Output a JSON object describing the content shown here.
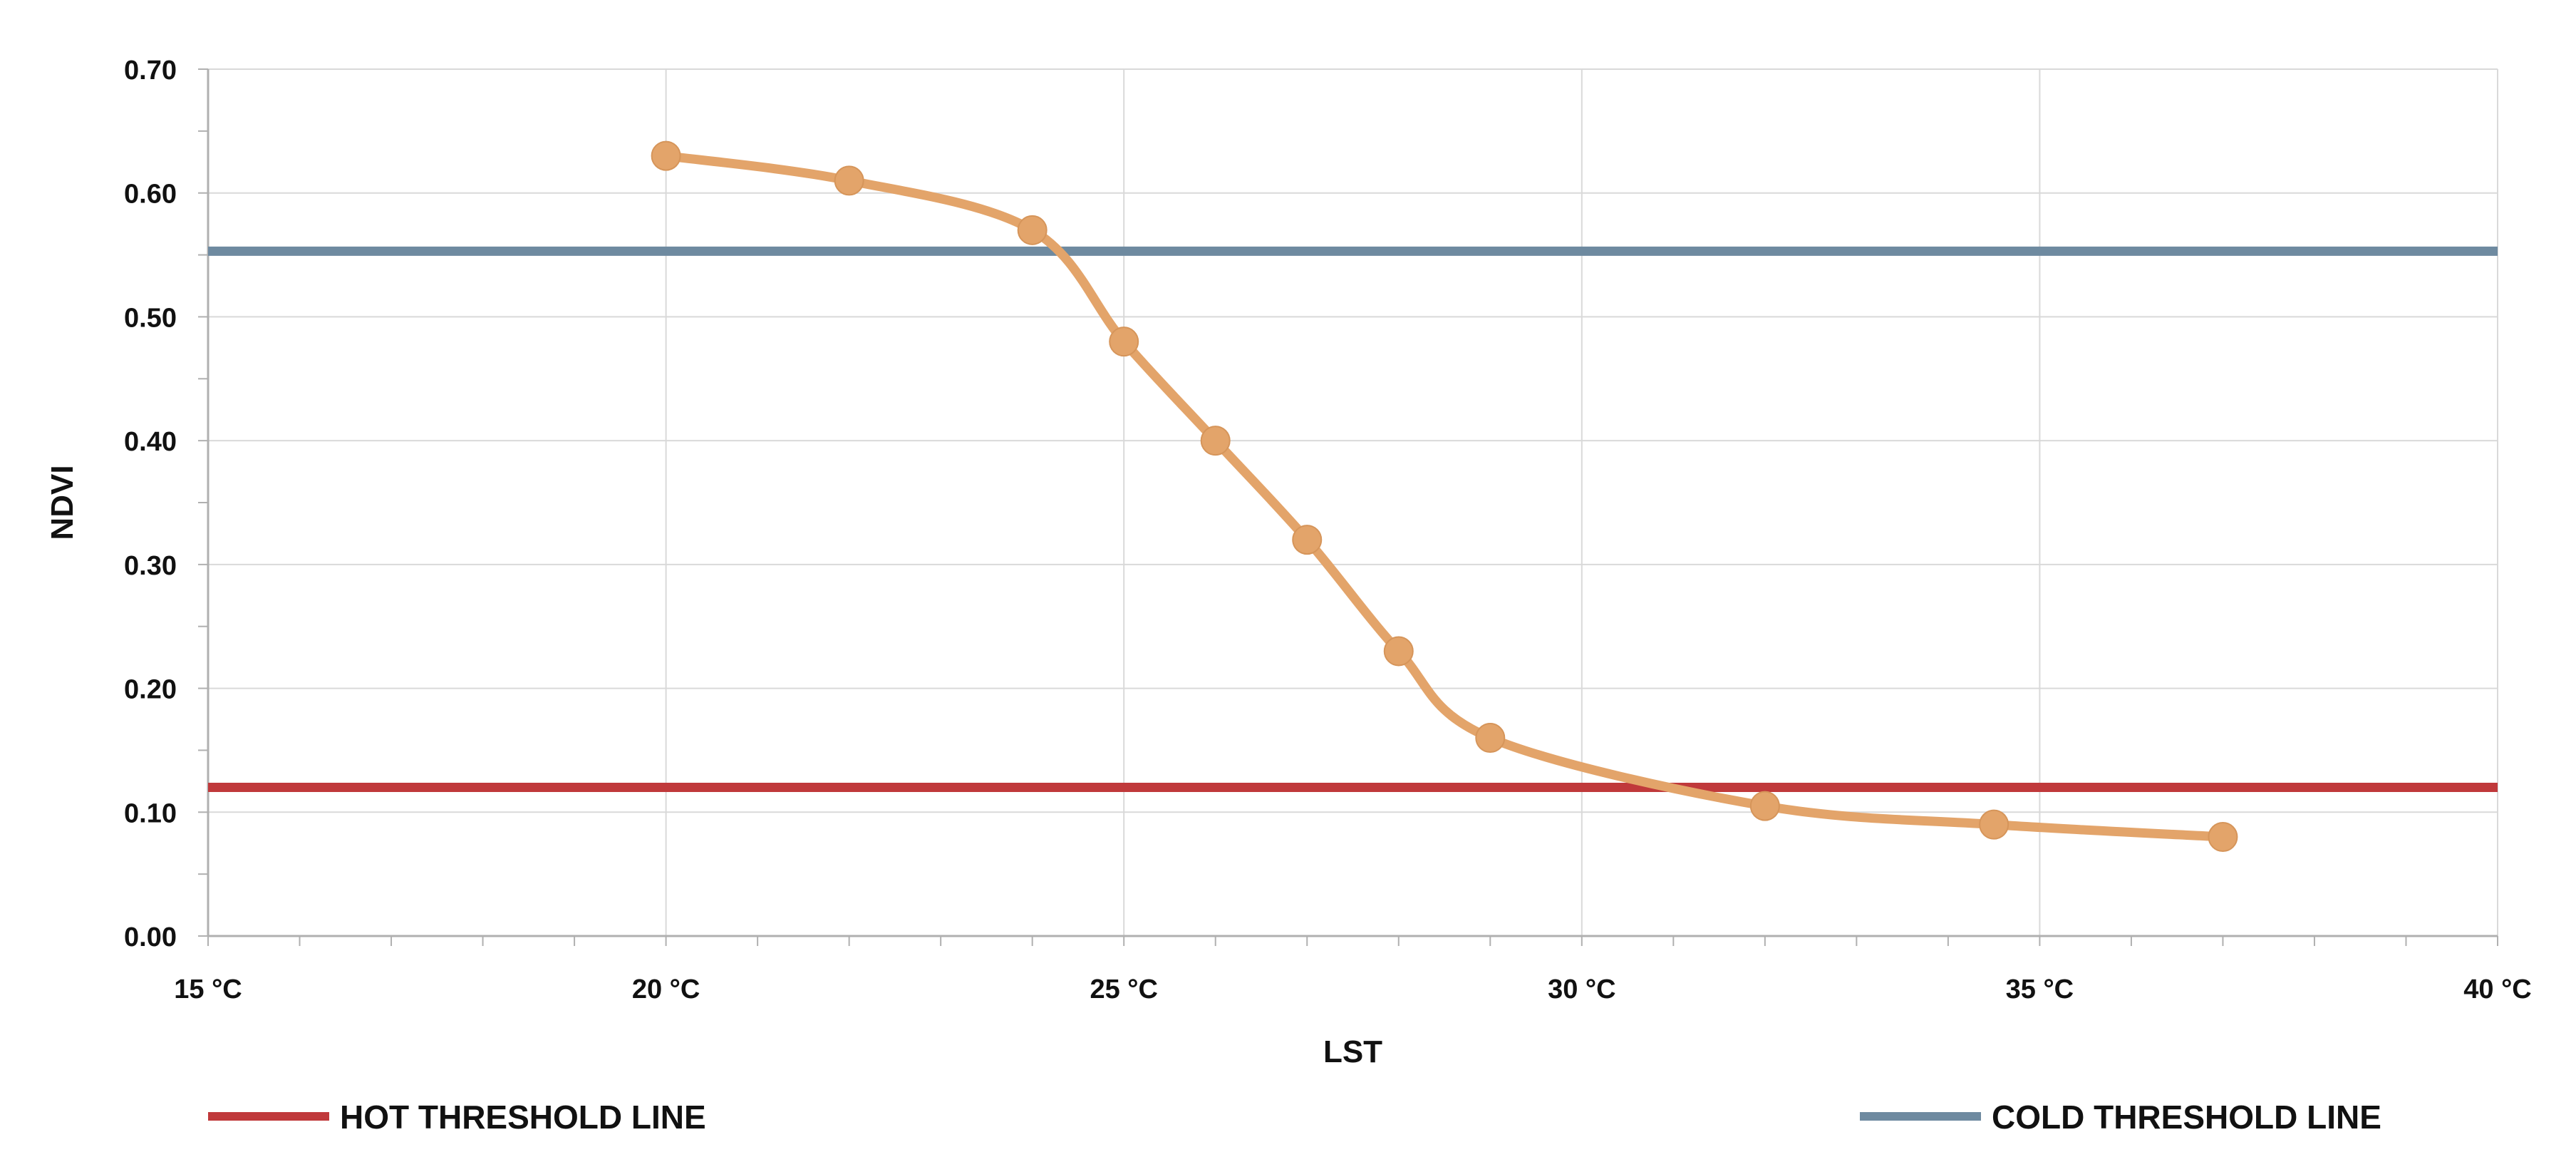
{
  "chart_data": {
    "type": "line",
    "xlabel": "LST",
    "ylabel": "NDVI",
    "xlim": [
      15,
      40
    ],
    "ylim": [
      0,
      0.7
    ],
    "x_ticks": [
      15,
      20,
      25,
      30,
      35,
      40
    ],
    "x_tick_labels": [
      "15 °C",
      "20 °C",
      "25 °C",
      "30 °C",
      "35 °C",
      "40 °C"
    ],
    "y_ticks": [
      0,
      0.1,
      0.2,
      0.3,
      0.4,
      0.5,
      0.6,
      0.7
    ],
    "y_tick_labels": [
      "0.00",
      "0.10",
      "0.20",
      "0.30",
      "0.40",
      "0.50",
      "0.60",
      "0.70"
    ],
    "grid": true,
    "series": [
      {
        "color": "#e3a46a",
        "x": [
          20,
          22,
          24,
          25,
          26,
          27,
          28,
          29,
          32,
          34.5,
          37
        ],
        "y": [
          0.63,
          0.61,
          0.57,
          0.48,
          0.4,
          0.32,
          0.23,
          0.16,
          0.105,
          0.09,
          0.08
        ]
      }
    ],
    "threshold_lines": [
      {
        "name": "HOT THRESHOLD LINE",
        "y": 0.12,
        "color": "#c0393b"
      },
      {
        "name": "COLD THRESHOLD LINE",
        "y": 0.553,
        "color": "#6e8aa0"
      }
    ],
    "legend_position": "bottom"
  }
}
